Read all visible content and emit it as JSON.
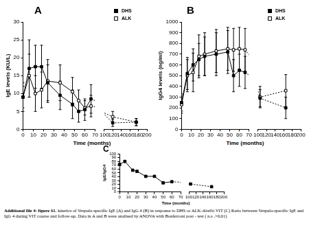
{
  "chart_data": [
    {
      "type": "line",
      "title": "A",
      "x_label": "Time (months)",
      "y_label": "IgE levels (KU/L)",
      "x": [
        0,
        6,
        12,
        18,
        24,
        36,
        48,
        54,
        60,
        66,
        120,
        175
      ],
      "series": [
        {
          "name": "DHS",
          "color": "#000000",
          "marker": "square",
          "values": [
            9,
            17,
            17.5,
            17.5,
            13,
            9.5,
            7,
            5,
            5.5,
            8.5,
            1.8,
            2
          ],
          "error": [
            4,
            8,
            6,
            6,
            5,
            4,
            4,
            3,
            3,
            4,
            1,
            1
          ]
        },
        {
          "name": "ALK",
          "color": "#000000",
          "marker": "square-open",
          "values": [
            9,
            15,
            10,
            11,
            13.5,
            13,
            10.5,
            8,
            6,
            6.5,
            3.5,
            2
          ],
          "error": [
            3,
            6,
            5,
            5,
            6,
            5,
            4,
            3,
            2,
            3,
            1.5,
            1
          ]
        }
      ],
      "xlim": [
        0,
        200
      ],
      "x_break": [
        70,
        100
      ],
      "xticks": [
        0,
        10,
        20,
        30,
        40,
        50,
        60,
        70,
        100,
        120,
        140,
        160,
        180,
        200
      ],
      "ylim": [
        0,
        30
      ],
      "yticks": [
        0,
        5,
        10,
        15,
        20,
        25,
        30
      ],
      "grid": false,
      "legend": "upper right"
    },
    {
      "type": "line",
      "title": "B",
      "x_label": "Time (months)",
      "y_label": "IgG4 levels (ng/ml)",
      "x": [
        0,
        6,
        12,
        18,
        24,
        36,
        48,
        54,
        60,
        66,
        105,
        165
      ],
      "series": [
        {
          "name": "DHS",
          "color": "#000000",
          "marker": "square",
          "values": [
            250,
            520,
            600,
            650,
            680,
            700,
            720,
            500,
            550,
            530,
            290,
            200
          ],
          "error": [
            80,
            150,
            150,
            150,
            180,
            200,
            200,
            150,
            150,
            150,
            80,
            100
          ]
        },
        {
          "name": "ALK",
          "color": "#000000",
          "marker": "square-open",
          "values": [
            230,
            500,
            530,
            680,
            700,
            730,
            750,
            740,
            750,
            740,
            300,
            360
          ],
          "error": [
            80,
            150,
            180,
            200,
            200,
            200,
            200,
            200,
            200,
            200,
            100,
            150
          ]
        }
      ],
      "xlim": [
        0,
        200
      ],
      "x_break": [
        70,
        100
      ],
      "xticks": [
        0,
        10,
        20,
        30,
        40,
        50,
        60,
        70,
        100,
        120,
        140,
        160,
        180,
        200
      ],
      "ylim": [
        0,
        1000
      ],
      "yticks": [
        0,
        100,
        200,
        300,
        400,
        500,
        600,
        700,
        800,
        900,
        1000
      ],
      "grid": false,
      "legend": "upper right"
    },
    {
      "type": "line",
      "title": "C",
      "x_label": "Time (months)",
      "y_label": "IgE/IgG4",
      "x": [
        0,
        6,
        15,
        20,
        30,
        40,
        50,
        60,
        105,
        165
      ],
      "values": [
        72,
        80,
        57,
        54,
        41,
        41,
        24,
        27,
        21,
        14
      ],
      "color": "#000000",
      "marker": "square",
      "xlim": [
        0,
        200
      ],
      "x_break": [
        70,
        100
      ],
      "xticks": [
        0,
        10,
        20,
        30,
        40,
        50,
        60,
        70,
        100,
        120,
        140,
        160,
        180,
        200
      ],
      "ylim": [
        0,
        100
      ],
      "yticks": [
        0,
        10,
        20,
        30,
        40,
        50,
        60,
        70,
        80,
        90,
        100
      ],
      "grid": false
    }
  ],
  "caption": {
    "label": "Additional file 4: figure S1.",
    "text": "kinetics of Vespula-specific IgE (A) and IgG 4 (B) in response to DHS or ALK-Abellò VIT (C) Ratio between Vespula-specific IgE and IgG 4 during VIT course and follow-up. Data in A and B were analised by ANOVA with Bonferroni post - test ( n.s .>0.01)"
  }
}
